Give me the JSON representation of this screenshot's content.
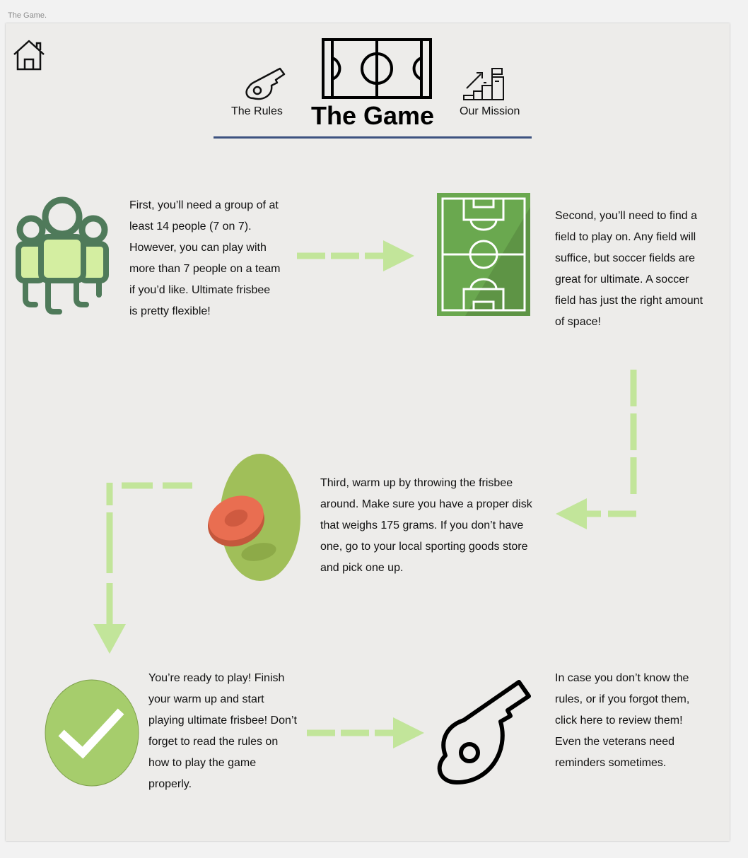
{
  "window": {
    "label": "The Game."
  },
  "nav": {
    "rules_label": "The Rules",
    "title": "The Game",
    "mission_label": "Our Mission"
  },
  "steps": [
    {
      "icon": "group-people-icon",
      "text": "First, you’ll need a group of at least 14 people (7 on 7). However, you can play with more than 7 people on a team if you’d like. Ultimate frisbee is pretty flexible!"
    },
    {
      "icon": "soccer-field-icon",
      "text": "Second, you’ll need to find a field to play on. Any field will suffice, but soccer fields are great for ultimate. A soccer field has just the right amount of space!"
    },
    {
      "icon": "frisbee-disk-icon",
      "text": "Third, warm up by throwing the frisbee around. Make sure you have a proper disk that weighs 175 grams. If you don’t have one, go to your local sporting goods store and pick one up."
    },
    {
      "icon": "checkmark-icon",
      "text": "You’re ready to play! Finish your warm up and start playing ultimate frisbee! Don’t forget to read the rules on how to play the game properly."
    },
    {
      "icon": "whistle-icon",
      "text": "In case you don’t know the rules, or if you forgot them, click here to review them! Even the veterans need reminders sometimes."
    }
  ],
  "colors": {
    "accent_underline": "#3d5280",
    "arrow_green": "#c2e59a",
    "field_green": "#6aa84f",
    "people_green": "#4f7a5a",
    "people_fill": "#d4eea1",
    "frisbee_red": "#e96e51",
    "disk_bg_green": "#a0bf59",
    "check_green": "#a6cd6c"
  }
}
